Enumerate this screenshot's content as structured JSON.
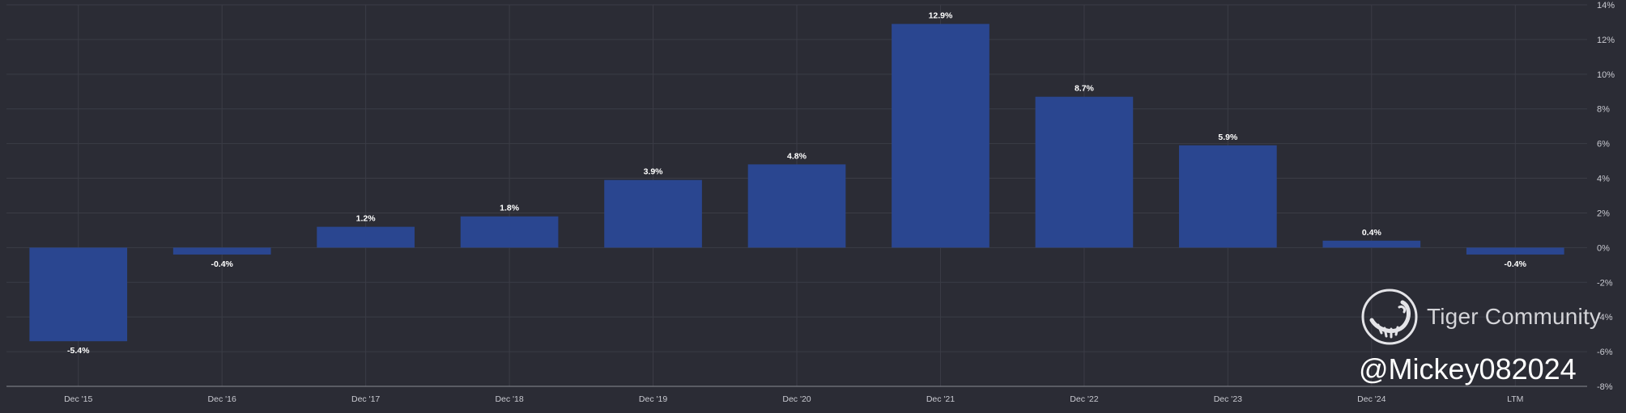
{
  "chart_data": {
    "type": "bar",
    "categories": [
      "Dec '15",
      "Dec '16",
      "Dec '17",
      "Dec '18",
      "Dec '19",
      "Dec '20",
      "Dec '21",
      "Dec '22",
      "Dec '23",
      "Dec '24",
      "LTM"
    ],
    "values": [
      -5.4,
      -0.4,
      1.2,
      1.8,
      3.9,
      4.8,
      12.9,
      8.7,
      5.9,
      0.4,
      -0.4
    ],
    "data_labels": [
      "-5.4%",
      "-0.4%",
      "1.2%",
      "1.8%",
      "3.9%",
      "4.8%",
      "12.9%",
      "8.7%",
      "5.9%",
      "0.4%",
      "-0.4%"
    ],
    "ylim": [
      -8,
      14
    ],
    "y_ticks": [
      14,
      12,
      10,
      8,
      6,
      4,
      2,
      0,
      -2,
      -4,
      -6,
      -8
    ],
    "y_tick_labels": [
      "14%",
      "12%",
      "10%",
      "8%",
      "6%",
      "4%",
      "2%",
      "0%",
      "-2%",
      "-4%",
      "-6%",
      "-8%"
    ],
    "y_axis_side": "right",
    "grid": true,
    "legend": false,
    "colors": {
      "background": "#2b2c35",
      "bar": "#2a4690",
      "grid": "#3b3c46",
      "axis_text": "#c9cad1",
      "label_text": "#ffffff"
    }
  },
  "watermark": {
    "brand": "Tiger Community",
    "handle": "@Mickey082024",
    "logo_icon": "tiger-logo-icon"
  }
}
